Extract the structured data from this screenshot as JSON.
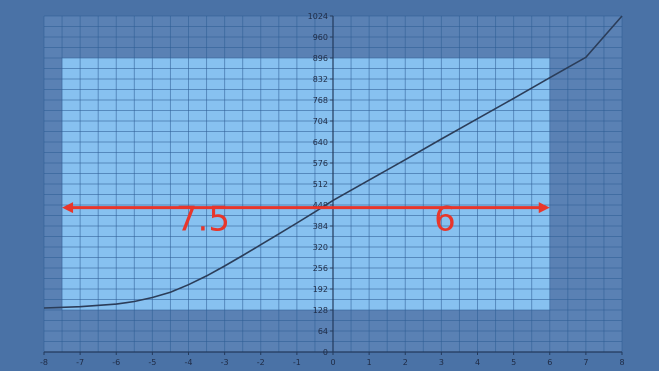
{
  "chart_data": {
    "type": "line",
    "title": "",
    "xlabel": "",
    "ylabel": "",
    "xlim": [
      -8,
      8
    ],
    "ylim": [
      0,
      1024
    ],
    "x_ticks": [
      -8,
      -7,
      -6,
      -5,
      -4,
      -3,
      -2,
      -1,
      0,
      1,
      2,
      3,
      4,
      5,
      6,
      7,
      8
    ],
    "y_ticks": [
      0,
      64,
      128,
      192,
      256,
      320,
      384,
      448,
      512,
      576,
      640,
      704,
      768,
      832,
      896,
      960,
      1024
    ],
    "grid": true,
    "series": [
      {
        "color": "#2b3d59",
        "points": [
          [
            -8,
            134
          ],
          [
            -7,
            138
          ],
          [
            -6,
            146
          ],
          [
            -5.5,
            154
          ],
          [
            -5,
            166
          ],
          [
            -4.5,
            182
          ],
          [
            -4,
            205
          ],
          [
            -3.5,
            232
          ],
          [
            -3,
            262
          ],
          [
            -2.5,
            294
          ],
          [
            -2,
            327
          ],
          [
            -1.5,
            360
          ],
          [
            -1,
            393
          ],
          [
            -0.5,
            427
          ],
          [
            0,
            462
          ],
          [
            1,
            524
          ],
          [
            2,
            586
          ],
          [
            3,
            649
          ],
          [
            4,
            711
          ],
          [
            5,
            773
          ],
          [
            6,
            836
          ],
          [
            7,
            898
          ],
          [
            8,
            1024
          ]
        ]
      }
    ],
    "highlight_region": {
      "x": [
        -7.5,
        6
      ],
      "y": [
        128,
        896
      ],
      "color": "#87c1f0"
    },
    "annotations": [
      {
        "type": "double-arrow",
        "x_from": -7.5,
        "x_to": 6,
        "y": 440,
        "color": "#e8362b"
      },
      {
        "type": "text",
        "text": "7.5",
        "x": -3.6,
        "y": 370,
        "color": "#e8362b"
      },
      {
        "type": "text",
        "text": "6",
        "x": 3.1,
        "y": 370,
        "color": "#e8362b"
      }
    ]
  }
}
